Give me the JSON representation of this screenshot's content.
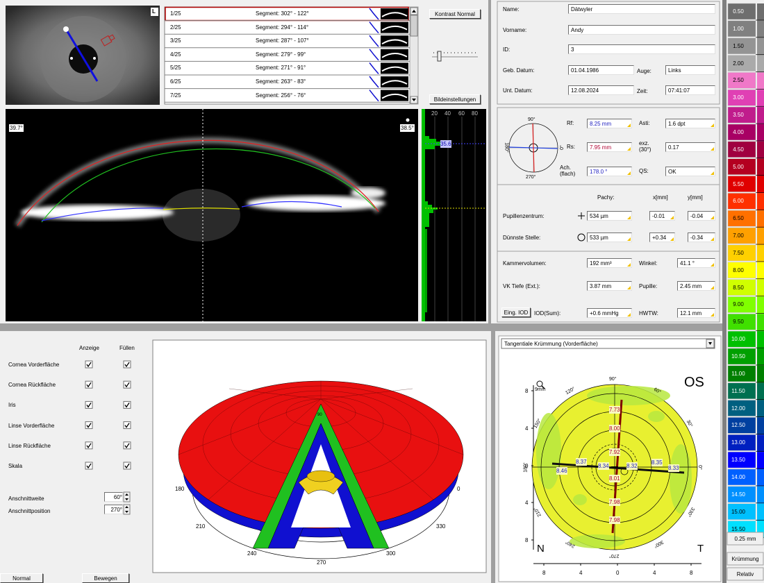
{
  "eye_image": {
    "badge": "L"
  },
  "segments": [
    {
      "index": "1/25",
      "label": "Segment: 302° - 122°"
    },
    {
      "index": "2/25",
      "label": "Segment: 294° - 114°"
    },
    {
      "index": "3/25",
      "label": "Segment: 287° - 107°"
    },
    {
      "index": "4/25",
      "label": "Segment: 279° - 99°"
    },
    {
      "index": "5/25",
      "label": "Segment: 271° - 91°"
    },
    {
      "index": "6/25",
      "label": "Segment: 263° - 83°"
    },
    {
      "index": "7/25",
      "label": "Segment: 256° - 76°"
    }
  ],
  "image_controls": {
    "contrast_button": "Kontrast Normal",
    "settings_button": "Bildeinstellungen"
  },
  "scheimpflug": {
    "left_angle": "39.7°",
    "right_angle": "38.5°"
  },
  "histogram": {
    "ticks": [
      "20",
      "40",
      "60",
      "80"
    ],
    "marker": "35.6"
  },
  "patient": {
    "rows": [
      {
        "label": "Name:",
        "value": "Dätwyler"
      },
      {
        "label": "Vorname:",
        "value": "Andy"
      },
      {
        "label": "ID:",
        "value": "3"
      },
      {
        "label": "Geb. Datum:",
        "value": "01.04.1986"
      },
      {
        "label": "Unt. Datum:",
        "value": "12.08.2024"
      }
    ],
    "eye": {
      "label": "Auge:",
      "value": "Links"
    },
    "time": {
      "label": "Zeit:",
      "value": "07:41:07"
    }
  },
  "keratometry": {
    "compass": [
      "90°",
      "180°",
      "270°",
      "0°"
    ],
    "left_fields": [
      {
        "label": "Rf:",
        "value": "8.25 mm"
      },
      {
        "label": "Rs:",
        "value": "7.95 mm"
      },
      {
        "label": "Ach. (flach)",
        "value": "178.0 °"
      }
    ],
    "right_fields": [
      {
        "label": "Asti:",
        "value": "1.6 dpt"
      },
      {
        "label": "exz. (30°)",
        "value": "0.17"
      },
      {
        "label": "QS:",
        "value": "OK"
      }
    ]
  },
  "pachy": {
    "headers": [
      "Pachy:",
      "x[mm]",
      "y[mm]"
    ],
    "rows": [
      {
        "label": "Pupillenzentrum:",
        "values": [
          "534 µm",
          "-0.01",
          "-0.04"
        ]
      },
      {
        "label": "Dünnste Stelle:",
        "values": [
          "533 µm",
          "+0.34",
          "-0.34"
        ]
      }
    ]
  },
  "chamber": {
    "rows": [
      {
        "label": "Kammervolumen:",
        "value": "192 mm³",
        "label2": "Winkel:",
        "value2": "41.1 °"
      },
      {
        "label": "VK Tiefe (Ext.):",
        "value": "3.87 mm",
        "label2": "Pupille:",
        "value2": "2.45 mm"
      },
      {
        "label": "IOD(Sum):",
        "value": "+0.6 mmHg",
        "label2": "HWTW:",
        "value2": "12.1 mm"
      }
    ],
    "iod_button": "Eing. IOD"
  },
  "scale": {
    "steps": [
      {
        "label": "0.50",
        "color": "#6e6e6e"
      },
      {
        "label": "1.00",
        "color": "#808080"
      },
      {
        "label": "1.50",
        "color": "#949494"
      },
      {
        "label": "2.00",
        "color": "#aaaaaa"
      },
      {
        "label": "2.50",
        "color": "#f078c8"
      },
      {
        "label": "3.00",
        "color": "#e040b4"
      },
      {
        "label": "3.50",
        "color": "#c01c8c"
      },
      {
        "label": "4.00",
        "color": "#a80064"
      },
      {
        "label": "4.50",
        "color": "#a00040"
      },
      {
        "label": "5.00",
        "color": "#b40020"
      },
      {
        "label": "5.50",
        "color": "#e00000"
      },
      {
        "label": "6.00",
        "color": "#ff3000"
      },
      {
        "label": "6.50",
        "color": "#ff7000"
      },
      {
        "label": "7.00",
        "color": "#ffa000"
      },
      {
        "label": "7.50",
        "color": "#ffd000"
      },
      {
        "label": "8.00",
        "color": "#ffff00"
      },
      {
        "label": "8.50",
        "color": "#d0ff00"
      },
      {
        "label": "9.00",
        "color": "#80ff00"
      },
      {
        "label": "9.50",
        "color": "#40e000"
      },
      {
        "label": "10.00",
        "color": "#00c000"
      },
      {
        "label": "10.50",
        "color": "#00a000"
      },
      {
        "label": "11.00",
        "color": "#008000"
      },
      {
        "label": "11.50",
        "color": "#007050"
      },
      {
        "label": "12.00",
        "color": "#006080"
      },
      {
        "label": "12.50",
        "color": "#0040a0"
      },
      {
        "label": "13.00",
        "color": "#0020c0"
      },
      {
        "label": "13.50",
        "color": "#0000ff"
      },
      {
        "label": "14.00",
        "color": "#0060ff"
      },
      {
        "label": "14.50",
        "color": "#0090ff"
      },
      {
        "label": "15.00",
        "color": "#00c0ff"
      },
      {
        "label": "15.50",
        "color": "#00e0ff"
      }
    ],
    "step_size": "0.25 mm",
    "mode": "Krümmung",
    "reference": "Relativ"
  },
  "display": {
    "headers": [
      "Anzeige",
      "Füllen"
    ],
    "layers": [
      "Cornea Vorderfläche",
      "Cornea Rückfläche",
      "Iris",
      "Linse Vorderfläche",
      "Linse Rückfläche",
      "Skala"
    ],
    "cut_width": {
      "label": "Anschnittweite",
      "value": "60°"
    },
    "cut_position": {
      "label": "Anschnittposition",
      "value": "270°"
    },
    "buttons": [
      "Normal",
      "Bewegen"
    ]
  },
  "view3d": {
    "labels": [
      "180",
      "0",
      "210",
      "330",
      "240",
      "300",
      "270",
      "90"
    ]
  },
  "map": {
    "dropdown": "Tangentiale Krümmung (Vorderfläche)",
    "eye": "OS",
    "zoom": "9mm",
    "nasal": "N",
    "temporal": "T",
    "yticks": [
      "8",
      "4",
      "0",
      "4",
      "8"
    ],
    "xticks": [
      "8",
      "4",
      "0",
      "4",
      "8"
    ],
    "angles": [
      "0°",
      "30°",
      "60°",
      "90°",
      "120°",
      "150°",
      "180°",
      "210°",
      "240°",
      "270°",
      "300°",
      "330°"
    ],
    "vertical_values": [
      "7.73",
      "8.00",
      "7.92",
      "8.01",
      "7.98",
      "7.98"
    ],
    "horizontal_values": [
      "8.46",
      "8.37",
      "8.34",
      "8.32",
      "8.35",
      "8.33"
    ]
  }
}
